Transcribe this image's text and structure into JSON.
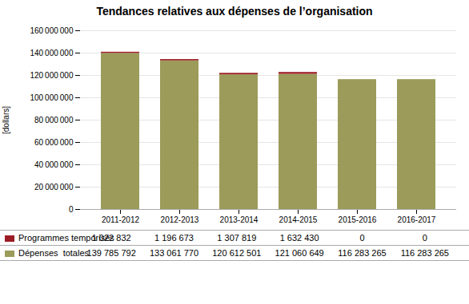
{
  "chart_data": {
    "type": "bar",
    "stacked": true,
    "title": "Tendances relatives aux dépenses de l’organisation",
    "ylabel": "[dollars]",
    "categories": [
      "2011-2012",
      "2012-2013",
      "2013-2014",
      "2014-2015",
      "2015-2016",
      "2016-2017"
    ],
    "series": [
      {
        "name": "Dépenses  totales",
        "color": "#9c9b5a",
        "values": [
          139785792,
          133061770,
          120612501,
          121060649,
          116283265,
          116283265
        ],
        "value_labels": [
          "139 785 792",
          "133 061 770",
          "120 612 501",
          "121 060 649",
          "116 283 265",
          "116 283 265"
        ]
      },
      {
        "name": "Programmes temporisés",
        "color": "#9b1c24",
        "values": [
          1022832,
          1196673,
          1307819,
          1632430,
          0,
          0
        ],
        "value_labels": [
          "1 022 832",
          "1 196 673",
          "1 307 819",
          "1 632 430",
          "0",
          "0"
        ]
      }
    ],
    "ylim": [
      0,
      160000000
    ],
    "yticks": [
      0,
      {
        "value": 20000000,
        "label": "20 000 000"
      },
      {
        "value": 40000000,
        "label": "40 000 000"
      },
      {
        "value": 60000000,
        "label": "60 000 000"
      },
      {
        "value": 80000000,
        "label": "80 000 000"
      },
      {
        "value": 100000000,
        "label": "100 000 000"
      },
      {
        "value": 120000000,
        "label": "120 000 000"
      },
      {
        "value": 140000000,
        "label": "140 000 000"
      },
      {
        "value": 160000000,
        "label": "160 000 000"
      }
    ],
    "grid": true,
    "data_labels": true,
    "legend": "bottom"
  }
}
